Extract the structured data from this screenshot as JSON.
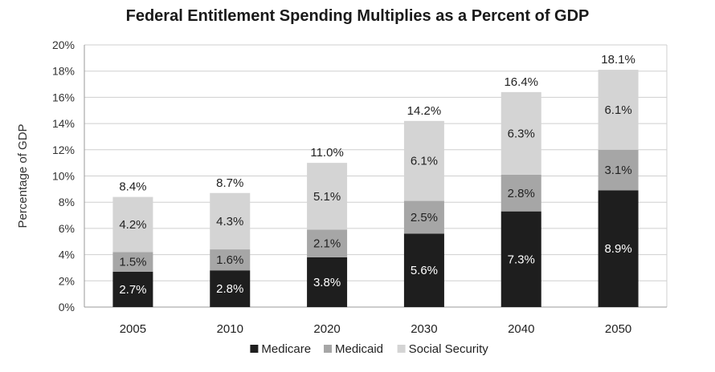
{
  "chart_data": {
    "type": "bar",
    "stacked": true,
    "title": "Federal Entitlement Spending Multiplies as a Percent of GDP",
    "xlabel": "",
    "ylabel": "Percentage of GDP",
    "ylim": [
      0,
      20
    ],
    "yticks": [
      "0%",
      "2%",
      "4%",
      "6%",
      "8%",
      "10%",
      "12%",
      "14%",
      "16%",
      "18%",
      "20%"
    ],
    "grid": true,
    "legend_position": "bottom",
    "categories": [
      "2005",
      "2010",
      "2020",
      "2030",
      "2040",
      "2050"
    ],
    "series": [
      {
        "name": "Medicare",
        "color": "#1e1e1e",
        "label_color": "#ffffff",
        "values": [
          2.7,
          2.8,
          3.8,
          5.6,
          7.3,
          8.9
        ],
        "labels": [
          "2.7%",
          "2.8%",
          "3.8%",
          "5.6%",
          "7.3%",
          "8.9%"
        ]
      },
      {
        "name": "Medicaid",
        "color": "#a6a6a6",
        "label_color": "#222222",
        "values": [
          1.5,
          1.6,
          2.1,
          2.5,
          2.8,
          3.1
        ],
        "labels": [
          "1.5%",
          "1.6%",
          "2.1%",
          "2.5%",
          "2.8%",
          "3.1%"
        ]
      },
      {
        "name": "Social Security",
        "color": "#d4d4d4",
        "label_color": "#222222",
        "values": [
          4.2,
          4.3,
          5.1,
          6.1,
          6.3,
          6.1
        ],
        "labels": [
          "4.2%",
          "4.3%",
          "5.1%",
          "6.1%",
          "6.3%",
          "6.1%"
        ]
      }
    ],
    "totals": [
      "8.4%",
      "8.7%",
      "11.0%",
      "14.2%",
      "16.4%",
      "18.1%"
    ]
  }
}
